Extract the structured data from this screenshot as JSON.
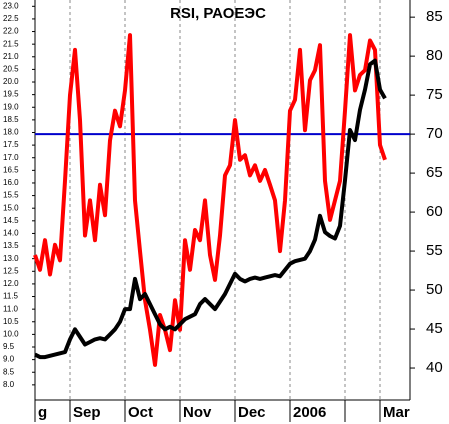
{
  "chart_data": {
    "type": "line",
    "title": "RSI, РАОЕЭС",
    "series": [
      {
        "color": "#ff0000",
        "axis": "y2",
        "values": [
          54.5,
          52.6,
          56.4,
          52,
          55.8,
          53.8,
          64,
          75,
          80.8,
          71.8,
          57,
          61.5,
          56.4,
          63.5,
          59.6,
          69.2,
          73,
          71,
          75.6,
          82.7,
          61.5,
          55,
          48.7,
          44.9,
          40.4,
          46.8,
          44.9,
          42.3,
          48.7,
          44.9,
          56.4,
          52.6,
          57.7,
          56.4,
          61.5,
          54.5,
          51.3,
          57,
          64.7,
          66,
          71.8,
          66.7,
          67.3,
          64.7,
          66,
          64,
          65.4,
          63.5,
          61.5,
          55,
          61.5,
          73,
          74.4,
          80.8,
          70.5,
          76.9,
          78.2,
          81.4,
          64,
          59,
          61.5,
          64,
          73,
          82.7,
          75.6,
          77.6,
          78.2,
          82,
          80.8,
          68.6,
          66.7
        ]
      },
      {
        "color": "#000000",
        "values": [
          9.2,
          9.1,
          9.1,
          9.15,
          9.2,
          9.25,
          9.3,
          9.8,
          10.2,
          9.9,
          9.6,
          9.7,
          9.8,
          9.85,
          9.8,
          10.0,
          10.2,
          10.5,
          11.0,
          11.0,
          12.2,
          11.4,
          11.6,
          11.2,
          10.8,
          10.4,
          10.2,
          10.3,
          10.2,
          10.4,
          10.6,
          10.7,
          10.8,
          11.2,
          11.4,
          11.2,
          11.0,
          11.3,
          11.6,
          12.0,
          12.4,
          12.2,
          12.1,
          12.2,
          12.25,
          12.2,
          12.25,
          12.3,
          12.35,
          12.3,
          12.55,
          12.8,
          12.9,
          12.95,
          13.0,
          13.3,
          13.75,
          14.7,
          14.05,
          13.9,
          13.8,
          14.3,
          16.1,
          18.1,
          17.7,
          18.9,
          19.7,
          20.7,
          20.85,
          19.7,
          19.35
        ]
      }
    ],
    "reference_line": {
      "value": 70,
      "axis": "y2",
      "color": "#0000cc"
    },
    "xlim": [
      0,
      75
    ],
    "xticks": [
      {
        "value": 0,
        "label": "g"
      },
      {
        "value": 7,
        "label": "Sep"
      },
      {
        "value": 18,
        "label": "Oct"
      },
      {
        "value": 29,
        "label": "Nov"
      },
      {
        "value": 40,
        "label": "Dec"
      },
      {
        "value": 51,
        "label": "2006"
      },
      {
        "value": 62,
        "label": null
      },
      {
        "value": 69,
        "label": "Mar"
      }
    ],
    "grid": true,
    "ylim": [
      7.4,
      23.25
    ],
    "yticks": [
      {
        "value": 8,
        "label": "8.0"
      },
      {
        "value": 8.5,
        "label": "8.5"
      },
      {
        "value": 9,
        "label": "9.0"
      },
      {
        "value": 9.5,
        "label": "9.5"
      },
      {
        "value": 10,
        "label": "10.0"
      },
      {
        "value": 10.5,
        "label": "10.5"
      },
      {
        "value": 11,
        "label": "11.0"
      },
      {
        "value": 11.5,
        "label": "11.5"
      },
      {
        "value": 12,
        "label": "12.0"
      },
      {
        "value": 12.5,
        "label": "12.5"
      },
      {
        "value": 13,
        "label": "13.0"
      },
      {
        "value": 13.5,
        "label": "13.5"
      },
      {
        "value": 14,
        "label": "14.0"
      },
      {
        "value": 14.5,
        "label": "14.5"
      },
      {
        "value": 15,
        "label": "15.0"
      },
      {
        "value": 15.5,
        "label": "15.5"
      },
      {
        "value": 16,
        "label": "16.0"
      },
      {
        "value": 16.5,
        "label": "16.5"
      },
      {
        "value": 17,
        "label": "17.0"
      },
      {
        "value": 17.5,
        "label": "17.5"
      },
      {
        "value": 18,
        "label": "18.0"
      },
      {
        "value": 18.5,
        "label": "18.5"
      },
      {
        "value": 19,
        "label": "19.0"
      },
      {
        "value": 19.5,
        "label": "19.5"
      },
      {
        "value": 20,
        "label": "20.0"
      },
      {
        "value": 20.5,
        "label": "20.5"
      },
      {
        "value": 21,
        "label": "21.0"
      },
      {
        "value": 21.5,
        "label": "21.5"
      },
      {
        "value": 22,
        "label": "22.0"
      },
      {
        "value": 22.5,
        "label": "22.5"
      },
      {
        "value": 23,
        "label": "23.0"
      }
    ],
    "y2lim": [
      35.9,
      87.2
    ],
    "y2ticks": [
      40,
      45,
      50,
      55,
      60,
      65,
      70,
      75,
      80,
      85
    ]
  }
}
